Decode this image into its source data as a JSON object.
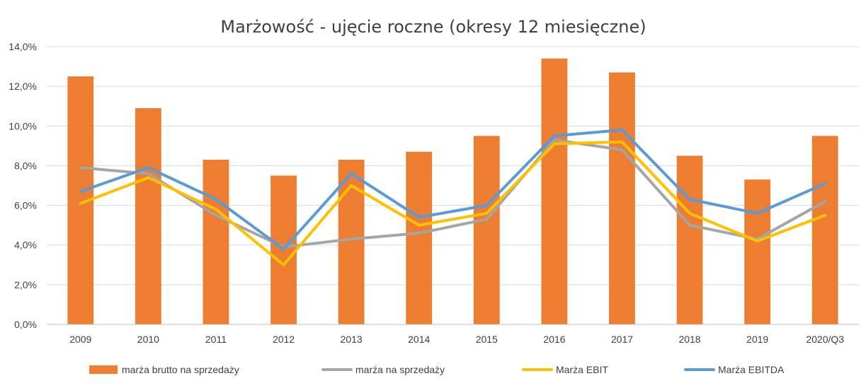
{
  "chart_data": {
    "type": "bar",
    "title": "Marżowość - ujęcie roczne (okresy 12 miesięczne)",
    "categories": [
      "2009",
      "2010",
      "2011",
      "2012",
      "2013",
      "2014",
      "2015",
      "2016",
      "2017",
      "2018",
      "2019",
      "2020/Q3"
    ],
    "ylim": [
      0,
      14
    ],
    "yticks": [
      "0,0%",
      "2,0%",
      "4,0%",
      "6,0%",
      "8,0%",
      "10,0%",
      "12,0%",
      "14,0%"
    ],
    "grid": true,
    "legend_position": "bottom",
    "series": [
      {
        "name": "marża brutto na sprzedaży",
        "kind": "bar",
        "color": "#ED7D31",
        "values": [
          12.5,
          10.9,
          8.3,
          7.5,
          8.3,
          8.7,
          9.5,
          13.4,
          12.7,
          8.5,
          7.3,
          9.5
        ]
      },
      {
        "name": "marża na sprzedaży",
        "kind": "line",
        "color": "#A5A5A5",
        "values": [
          7.9,
          7.6,
          5.5,
          3.9,
          4.3,
          4.6,
          5.3,
          9.3,
          8.8,
          5.0,
          4.3,
          6.2
        ]
      },
      {
        "name": "Marża EBIT",
        "kind": "line",
        "color": "#FFC000",
        "values": [
          6.1,
          7.4,
          5.8,
          3.0,
          7.0,
          5.0,
          5.6,
          9.1,
          9.2,
          5.6,
          4.2,
          5.5
        ]
      },
      {
        "name": "Marża EBITDA",
        "kind": "line",
        "color": "#5B9BD5",
        "values": [
          6.7,
          7.9,
          6.3,
          3.8,
          7.6,
          5.4,
          6.0,
          9.5,
          9.8,
          6.3,
          5.6,
          7.1
        ]
      }
    ]
  }
}
